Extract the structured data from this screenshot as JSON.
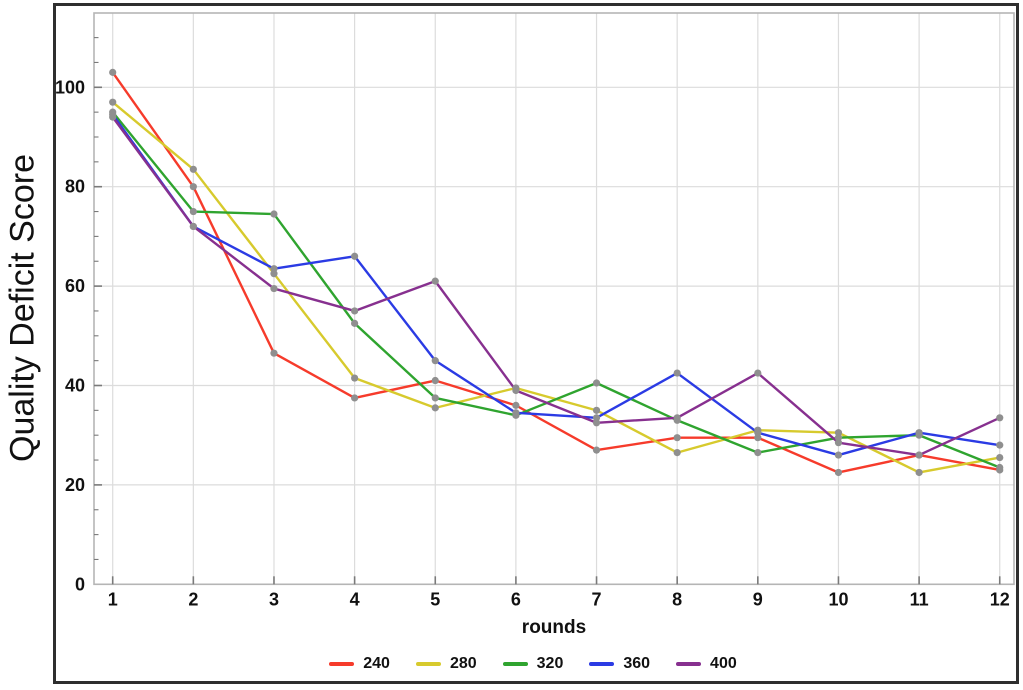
{
  "figure": {
    "y_axis_label": "Quality Deficit Score",
    "x_axis_label": "rounds"
  },
  "chart_data": {
    "type": "line",
    "title": "",
    "xlabel": "rounds",
    "ylabel": "Quality Deficit Score",
    "x": [
      1,
      2,
      3,
      4,
      5,
      6,
      7,
      8,
      9,
      10,
      11,
      12
    ],
    "x_ticks": [
      1,
      2,
      3,
      4,
      5,
      6,
      7,
      8,
      9,
      10,
      11,
      12
    ],
    "y_ticks": [
      0,
      20,
      40,
      60,
      80,
      100
    ],
    "xlim": [
      0.75,
      12.2
    ],
    "ylim": [
      0,
      115
    ],
    "grid": true,
    "legend_position": "bottom-center",
    "marker": {
      "shape": "circle",
      "color": "#8f8f8f"
    },
    "series": [
      {
        "name": "240",
        "color": "#f63b2b",
        "values": [
          103,
          80,
          46.5,
          37.5,
          41,
          36,
          27,
          29.5,
          29.5,
          22.5,
          26,
          23
        ]
      },
      {
        "name": "280",
        "color": "#d7ca2d",
        "values": [
          97,
          83.5,
          62.5,
          41.5,
          35.5,
          39.5,
          35,
          26.5,
          31,
          30.5,
          22.5,
          25.5
        ]
      },
      {
        "name": "320",
        "color": "#2fa42f",
        "values": [
          95,
          75,
          74.5,
          52.5,
          37.5,
          34,
          40.5,
          33,
          26.5,
          29.5,
          30,
          23.5
        ]
      },
      {
        "name": "360",
        "color": "#2b3be4",
        "values": [
          94.5,
          72,
          63.5,
          66,
          45,
          34.5,
          33.5,
          42.5,
          30.5,
          26,
          30.5,
          28
        ]
      },
      {
        "name": "400",
        "color": "#87308f",
        "values": [
          94,
          72,
          59.5,
          55,
          61,
          39,
          32.5,
          33.5,
          42.5,
          28.5,
          26,
          33.5
        ]
      }
    ]
  }
}
